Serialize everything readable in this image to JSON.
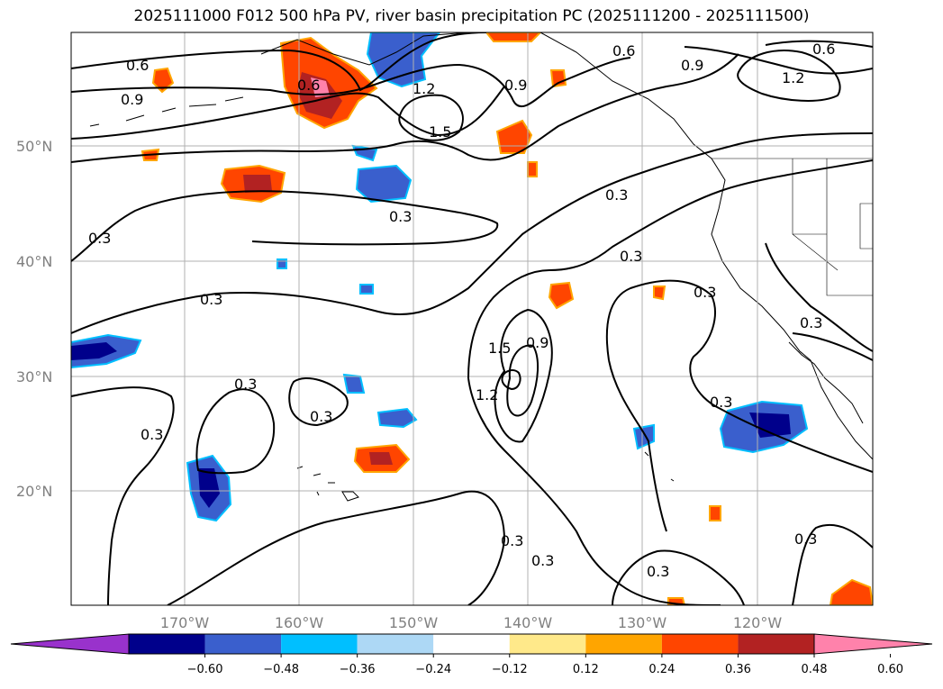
{
  "title": "2025111000 F012 500 hPa PV, river basin precipitation PC (2025111200 - 2025111500)",
  "map": {
    "lat_labels": [
      "50°N",
      "40°N",
      "30°N",
      "20°N"
    ],
    "lon_labels": [
      "170°W",
      "160°W",
      "150°W",
      "140°W",
      "130°W",
      "120°W"
    ],
    "contour_labels": [
      "0.6",
      "0.9",
      "0.6",
      "1.2",
      "1.5",
      "0.9",
      "0.6",
      "1.2",
      "0.9",
      "0.6",
      "0.3",
      "0.3",
      "0.3",
      "0.3",
      "0.3",
      "0.3",
      "1.5",
      "1.2",
      "0.9",
      "0.3",
      "0.3",
      "0.3",
      "0.3",
      "0.3",
      "0.3",
      "0.3",
      "0.3",
      "0.3"
    ]
  },
  "colorbar": {
    "colors": [
      "#9932cc",
      "#00008b",
      "#3a5fcd",
      "#00bfff",
      "#add8f5",
      "#ffffff",
      "#ffe98a",
      "#ffa500",
      "#ff4500",
      "#b22222",
      "#ff82ab"
    ],
    "ticks": [
      "−0.60",
      "−0.48",
      "−0.36",
      "−0.24",
      "−0.12",
      "0.12",
      "0.24",
      "0.36",
      "0.48",
      "0.60"
    ]
  }
}
